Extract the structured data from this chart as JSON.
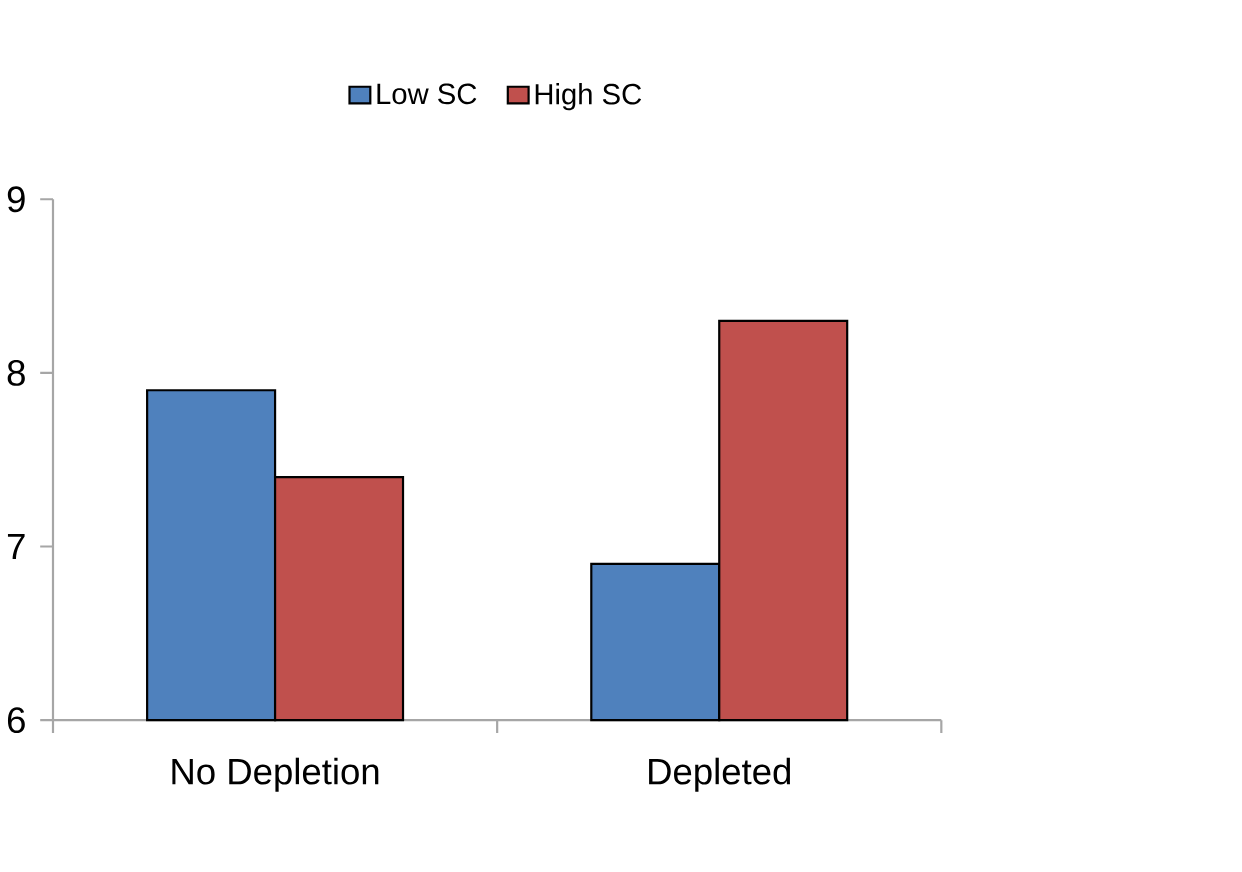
{
  "chart_data": {
    "type": "bar",
    "categories": [
      "No Depletion",
      "Depleted"
    ],
    "series": [
      {
        "name": "Low SC",
        "color": "#4f81bd",
        "values": [
          7.9,
          6.9
        ]
      },
      {
        "name": "High SC",
        "color": "#c0504d",
        "values": [
          7.4,
          8.3
        ]
      }
    ],
    "ylim": [
      6,
      9
    ],
    "yticks": [
      6,
      7,
      8,
      9
    ],
    "grid": false,
    "legend": "top"
  }
}
